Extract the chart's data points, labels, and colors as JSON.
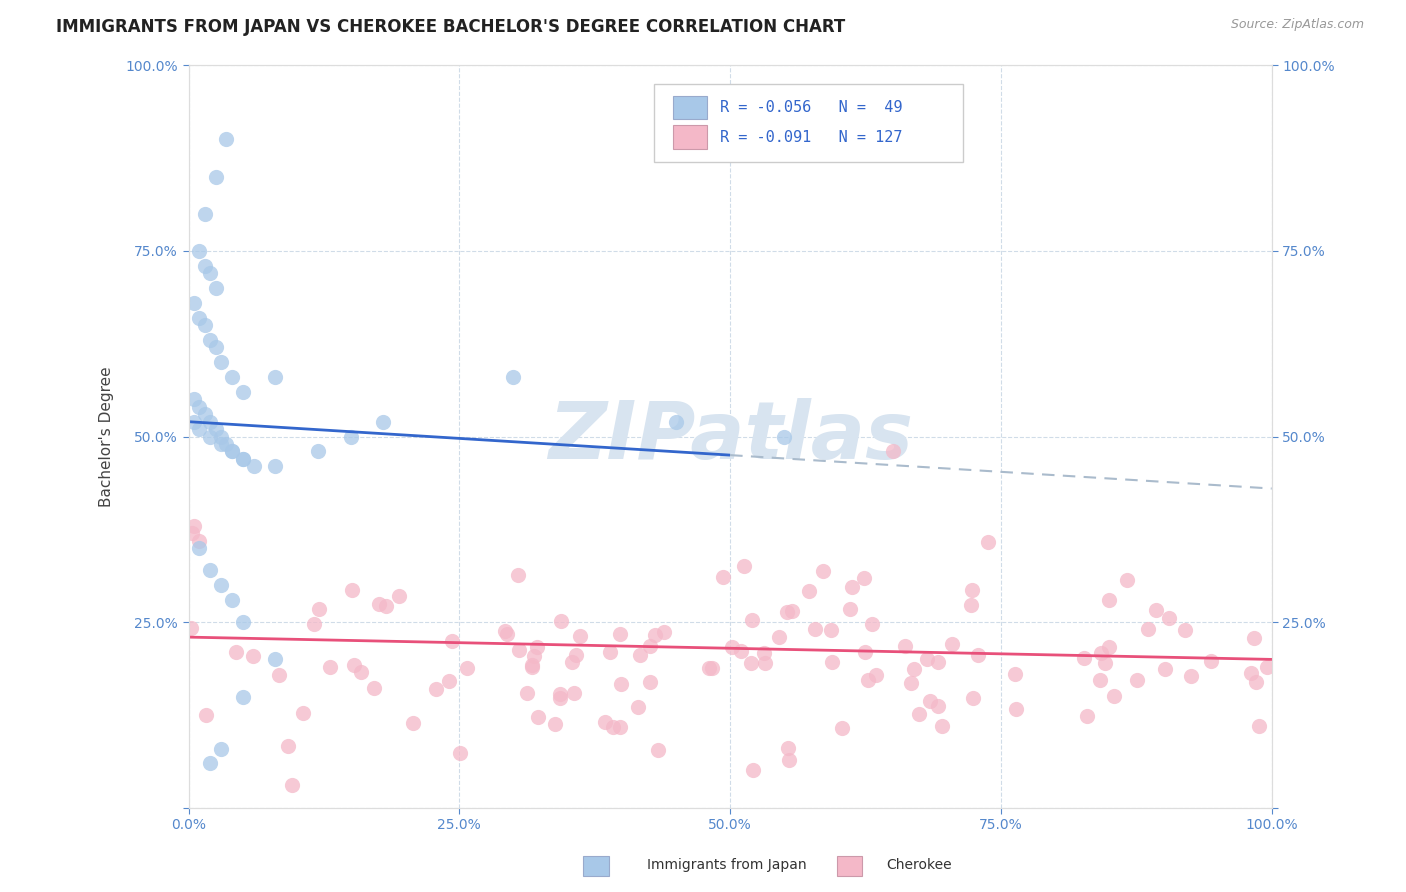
{
  "title": "IMMIGRANTS FROM JAPAN VS CHEROKEE BACHELOR'S DEGREE CORRELATION CHART",
  "source_text": "Source: ZipAtlas.com",
  "ylabel": "Bachelor's Degree",
  "blue_color": "#a8c8e8",
  "pink_color": "#f4b8c8",
  "blue_line_color": "#3366cc",
  "pink_line_color": "#e8507a",
  "dashed_line_color": "#aabbcc",
  "background_color": "#ffffff",
  "grid_color": "#d0dce8",
  "watermark_color": "#d8e4f0",
  "xmin": 0.0,
  "xmax": 100.0,
  "ymin": 0.0,
  "ymax": 100.0,
  "blue_trend_y0": 52.0,
  "blue_trend_y100": 43.0,
  "blue_solid_end_x": 50.0,
  "pink_trend_y0": 23.0,
  "pink_trend_y100": 20.0
}
